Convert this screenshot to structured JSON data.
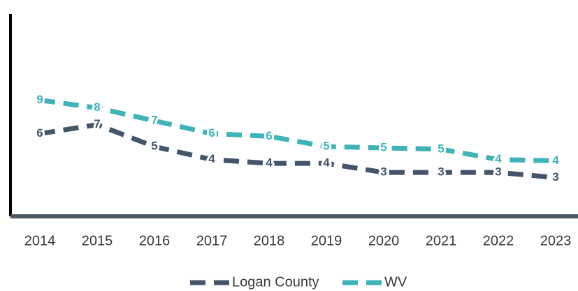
{
  "chart_data": {
    "type": "line",
    "categories": [
      "2014",
      "2015",
      "2016",
      "2017",
      "2018",
      "2019",
      "2020",
      "2021",
      "2022",
      "2023"
    ],
    "series": [
      {
        "name": "Logan County",
        "color": "#44546a",
        "values": [
          6.4,
          7.1,
          5.4,
          4.4,
          4.1,
          4.1,
          3.4,
          3.4,
          3.4,
          3.0
        ],
        "value_labels": [
          "6",
          "7",
          "5",
          "4",
          "4",
          "4",
          "3",
          "3",
          "3",
          "3"
        ]
      },
      {
        "name": "WV",
        "color": "#3fb3b8",
        "values": [
          9.0,
          8.4,
          7.4,
          6.4,
          6.2,
          5.4,
          5.3,
          5.2,
          4.4,
          4.3
        ],
        "value_labels": [
          "9",
          "8",
          "7",
          "6",
          "6",
          "5",
          "5",
          "5",
          "4",
          "4"
        ]
      }
    ],
    "ylim": [
      0,
      16
    ]
  }
}
